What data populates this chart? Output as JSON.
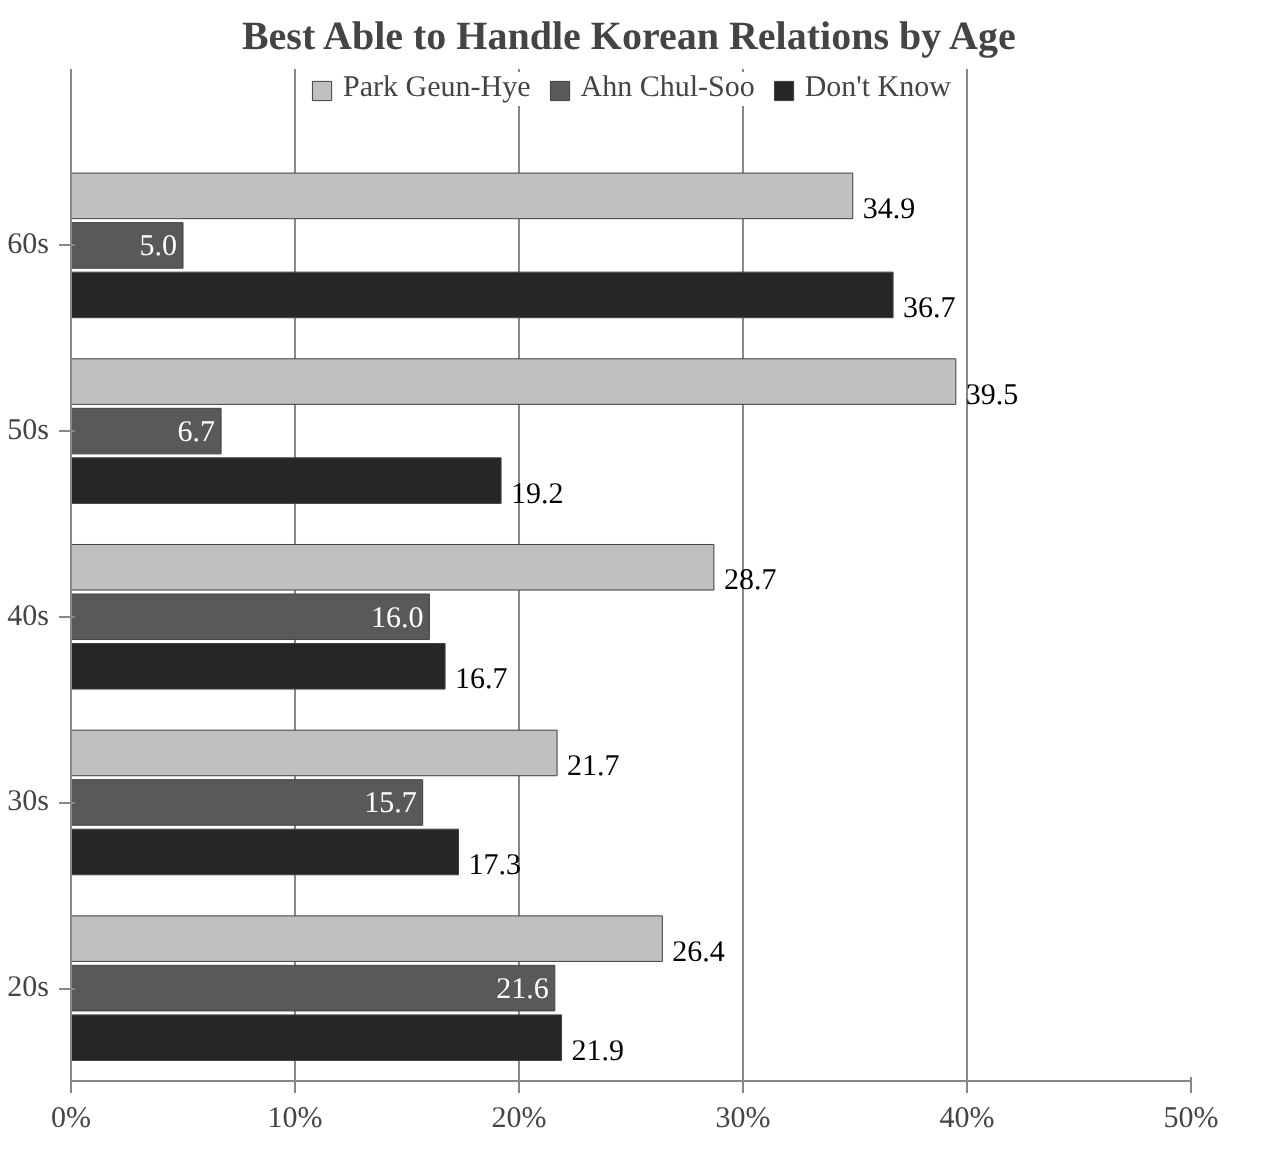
{
  "chart_data": {
    "type": "bar",
    "orientation": "horizontal",
    "title": "Best Able to Handle Korean Relations by Age",
    "categories": [
      "60s",
      "50s",
      "40s",
      "30s",
      "20s"
    ],
    "series": [
      {
        "name": "Park Geun-Hye",
        "color": "#c0c0c0",
        "values": [
          34.9,
          39.5,
          28.7,
          21.7,
          26.4
        ],
        "value_labels": [
          "34.9",
          "39.5",
          "28.7",
          "21.7",
          "26.4"
        ]
      },
      {
        "name": "Ahn Chul-Soo",
        "color": "#595959",
        "values": [
          5.0,
          6.7,
          16.0,
          15.7,
          21.6
        ],
        "value_labels": [
          "5.0",
          "6.7",
          "16.0",
          "15.7",
          "21.6"
        ]
      },
      {
        "name": "Don't Know",
        "color": "#262626",
        "values": [
          36.7,
          19.2,
          16.7,
          17.3,
          21.9
        ],
        "value_labels": [
          "36.7",
          "19.2",
          "16.7",
          "17.3",
          "21.9"
        ]
      }
    ],
    "xlim": [
      0,
      50
    ],
    "xticks": [
      {
        "value": 0,
        "label": "0%"
      },
      {
        "value": 10,
        "label": "10%"
      },
      {
        "value": 20,
        "label": "20%"
      },
      {
        "value": 30,
        "label": "30%"
      },
      {
        "value": 40,
        "label": "40%"
      },
      {
        "value": 50,
        "label": "50%"
      }
    ],
    "grid": "x",
    "legend": "top"
  }
}
